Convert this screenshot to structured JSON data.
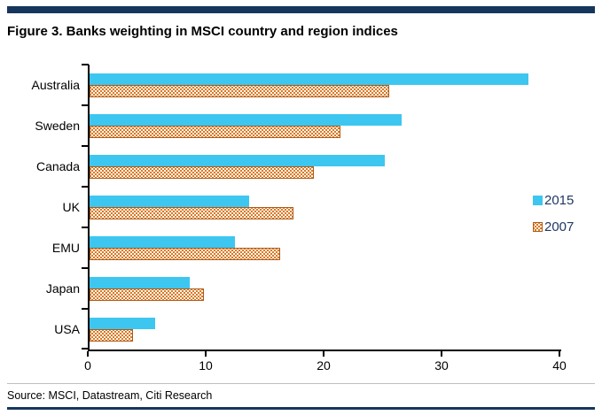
{
  "title": "Figure 3. Banks weighting in MSCI country and region indices",
  "source": "Source: MSCI, Datastream, Citi Research",
  "colors": {
    "navy_rule": "#17365D",
    "cyan_2015": "#3DC6F0",
    "orange_2007": "#D9731A",
    "orange_border": "#AD5A14",
    "legend_text": "#1F3864",
    "axis": "#000000"
  },
  "legend": {
    "label_2015": "2015",
    "label_2007": "2007"
  },
  "chart_data": {
    "type": "bar",
    "orientation": "horizontal",
    "title": "Figure 3. Banks weighting in MSCI country and region indices",
    "categories": [
      "Australia",
      "Sweden",
      "Canada",
      "UK",
      "EMU",
      "Japan",
      "USA"
    ],
    "series": [
      {
        "name": "2015",
        "color": "#3DC6F0",
        "values": [
          37.2,
          26.5,
          25.0,
          13.5,
          12.3,
          8.5,
          5.6
        ]
      },
      {
        "name": "2007",
        "color": "#D9731A",
        "values": [
          25.4,
          21.3,
          19.0,
          17.3,
          16.2,
          9.7,
          3.7
        ]
      }
    ],
    "xlabel": "",
    "ylabel": "",
    "xlim": [
      0,
      40
    ],
    "x_ticks": [
      0,
      10,
      20,
      30,
      40
    ],
    "grid": false,
    "legend_position": "right"
  }
}
